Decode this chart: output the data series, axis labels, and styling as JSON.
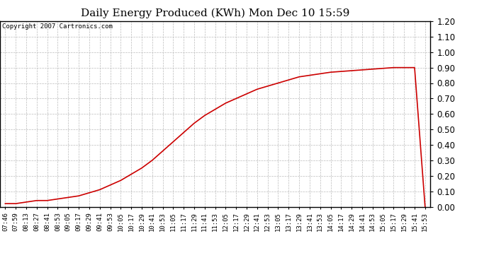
{
  "title": "Daily Energy Produced (KWh) Mon Dec 10 15:59",
  "copyright_text": "Copyright 2007 Cartronics.com",
  "line_color": "#cc0000",
  "background_color": "#ffffff",
  "plot_bg_color": "#ffffff",
  "grid_color": "#bbbbbb",
  "ylim": [
    0.0,
    1.2
  ],
  "yticks": [
    0.0,
    0.1,
    0.2,
    0.3,
    0.4,
    0.5,
    0.6,
    0.7,
    0.8,
    0.9,
    1.0,
    1.1,
    1.2
  ],
  "x_labels": [
    "07:46",
    "07:59",
    "08:13",
    "08:27",
    "08:41",
    "08:53",
    "09:05",
    "09:17",
    "09:29",
    "09:41",
    "09:53",
    "10:05",
    "10:17",
    "10:29",
    "10:41",
    "10:53",
    "11:05",
    "11:17",
    "11:29",
    "11:41",
    "11:53",
    "12:05",
    "12:17",
    "12:29",
    "12:41",
    "12:53",
    "13:05",
    "13:17",
    "13:29",
    "13:41",
    "13:53",
    "14:05",
    "14:17",
    "14:29",
    "14:41",
    "14:53",
    "15:05",
    "15:17",
    "15:29",
    "15:41",
    "15:53"
  ],
  "y_values": [
    0.02,
    0.02,
    0.03,
    0.04,
    0.04,
    0.05,
    0.06,
    0.07,
    0.09,
    0.11,
    0.14,
    0.17,
    0.21,
    0.25,
    0.3,
    0.36,
    0.42,
    0.48,
    0.54,
    0.59,
    0.63,
    0.67,
    0.7,
    0.73,
    0.76,
    0.78,
    0.8,
    0.82,
    0.84,
    0.85,
    0.86,
    0.87,
    0.875,
    0.88,
    0.885,
    0.89,
    0.895,
    0.9,
    0.9,
    0.9,
    0.0
  ],
  "line_width": 1.2,
  "title_fontsize": 11,
  "tick_fontsize": 6.5,
  "copyright_fontsize": 6.5,
  "ylabel_fontsize": 8.5
}
